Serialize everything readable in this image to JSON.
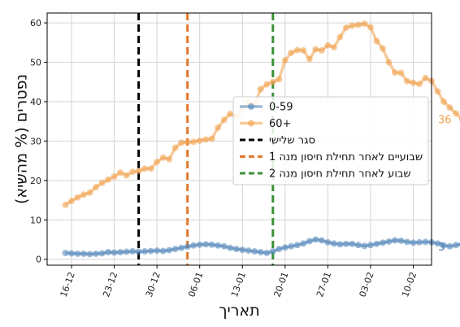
{
  "chart_data": {
    "type": "line",
    "xlabel": "תאריך",
    "ylabel": "נפטרים (% מהשיא)",
    "ylim": [
      -1.5,
      62.5
    ],
    "yticks": [
      0,
      10,
      20,
      30,
      40,
      50,
      60
    ],
    "xlim": [
      "2020-12-12",
      "2021-02-13"
    ],
    "xtick_dates": [
      "2020-12-16",
      "2020-12-23",
      "2020-12-30",
      "2021-01-06",
      "2021-01-13",
      "2021-01-20",
      "2021-01-27",
      "2021-02-03",
      "2021-02-10"
    ],
    "xtick_labels": [
      "16-12",
      "23-12",
      "30-12",
      "06-01",
      "13-01",
      "20-01",
      "27-01",
      "03-02",
      "10-02"
    ],
    "grid": true,
    "legend_position": "right",
    "x_start": "2020-12-15",
    "series": [
      {
        "name": "0-59",
        "color": "#4f83b8",
        "end_label": "3",
        "values": [
          1.6,
          1.5,
          1.4,
          1.4,
          1.3,
          1.4,
          1.5,
          1.8,
          1.7,
          1.8,
          1.9,
          2.0,
          1.9,
          2.0,
          2.1,
          2.2,
          2.1,
          2.3,
          2.6,
          2.9,
          3.2,
          3.5,
          3.7,
          3.8,
          3.7,
          3.5,
          3.3,
          2.9,
          2.6,
          2.4,
          2.2,
          2.0,
          1.8,
          1.6,
          2.0,
          2.6,
          3.0,
          3.3,
          3.6,
          4.0,
          4.6,
          5.0,
          4.8,
          4.3,
          4.0,
          3.8,
          3.9,
          3.9,
          3.6,
          3.4,
          3.6,
          3.9,
          4.2,
          4.5,
          4.8,
          4.7,
          4.4,
          4.2,
          4.3,
          4.4,
          4.3,
          4.0,
          3.5,
          3.3,
          3.6,
          3.8,
          3.6,
          3.2
        ]
      },
      {
        "name": "60+",
        "color": "#f0a04b",
        "end_label": "36",
        "values": [
          13.8,
          14.8,
          15.7,
          16.4,
          16.9,
          18.3,
          19.4,
          20.2,
          21.0,
          22.0,
          21.3,
          22.2,
          22.4,
          23.0,
          23.0,
          24.7,
          25.8,
          25.4,
          28.3,
          29.6,
          29.7,
          29.8,
          30.1,
          30.4,
          30.6,
          33.4,
          35.4,
          36.9,
          36.3,
          38.3,
          39.8,
          39.3,
          43.2,
          44.4,
          45.0,
          45.7,
          50.5,
          52.4,
          53.1,
          53.0,
          50.8,
          53.3,
          53.0,
          54.3,
          53.8,
          56.4,
          58.8,
          59.3,
          59.5,
          59.8,
          58.9,
          55.4,
          53.5,
          50.0,
          47.4,
          47.3,
          45.2,
          44.8,
          44.5,
          46.0,
          45.3,
          42.6,
          40.0,
          38.5,
          37.0,
          35.6
        ]
      }
    ],
    "vlines": [
      {
        "label": "סגר שלישי",
        "date": "2020-12-27",
        "color": "#000000"
      },
      {
        "label": "שבועיים לאחר תחילת חיסון מנה 1",
        "date": "2021-01-04",
        "color": "#e2792d"
      },
      {
        "label": "שבוע לאחר תחילת חיסון מנה 2",
        "date": "2021-01-18",
        "color": "#3a9136"
      }
    ]
  }
}
